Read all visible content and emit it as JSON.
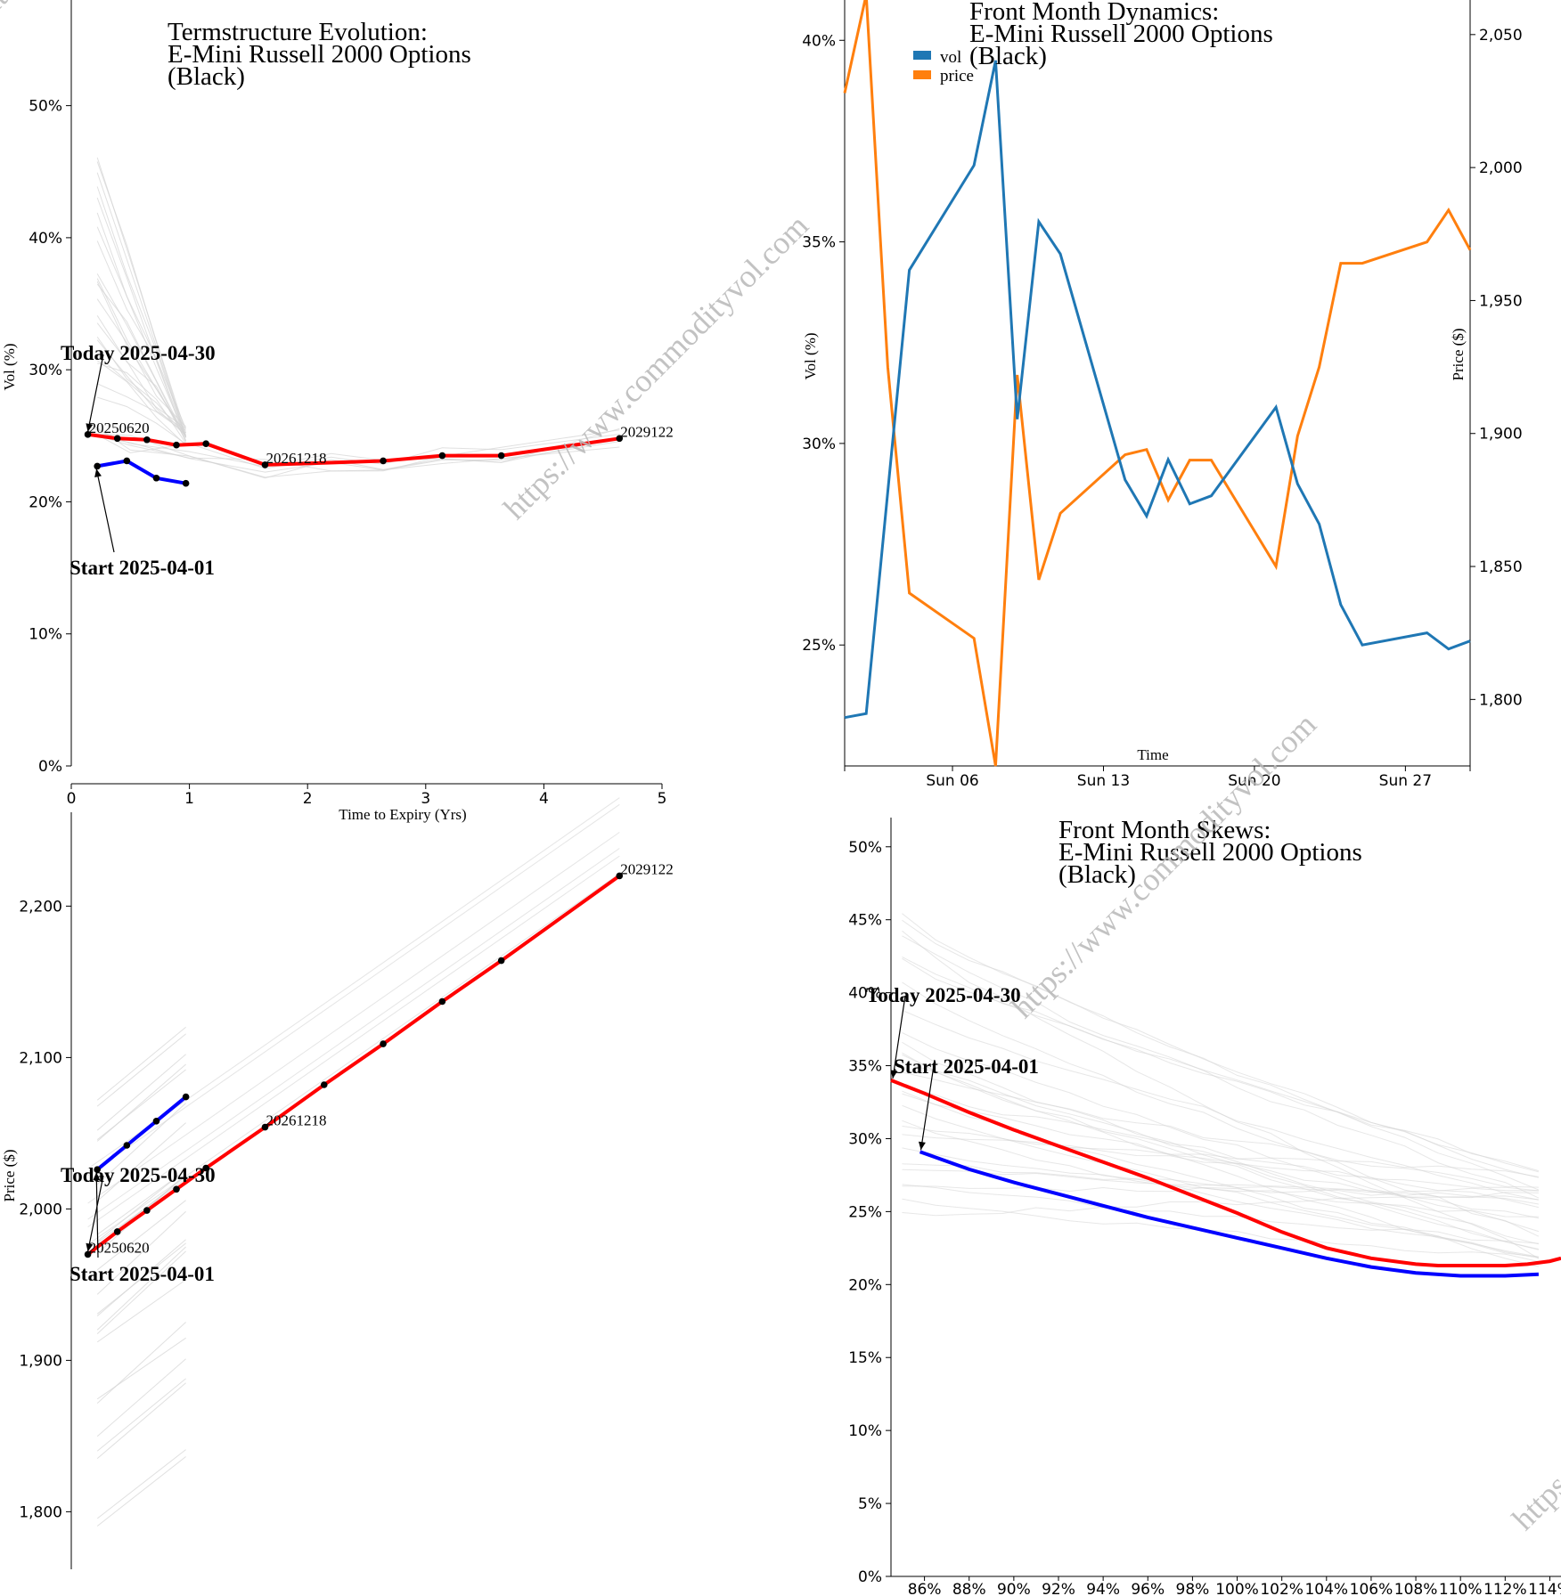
{
  "watermark": "https://www.commodityvol.com",
  "colors": {
    "today": "#ff0000",
    "start": "#0000ff",
    "history": "#d3d3d3",
    "vol": "#1f77b4",
    "price": "#ff7f0e",
    "dots": "#000000"
  },
  "chart_data": [
    {
      "id": "termstructure",
      "type": "line",
      "title": [
        "Termstructure Evolution:",
        "E-Mini Russell 2000 Options",
        "(Black)"
      ],
      "xlabel": "Time to Expiry (Yrs)",
      "ylabel": "Vol (%)",
      "xlim": [
        0,
        5
      ],
      "ylim": [
        0,
        58
      ],
      "xticks": [
        0,
        1,
        2,
        3,
        4,
        5
      ],
      "yticks": [
        0,
        10,
        20,
        30,
        40,
        50
      ],
      "annotations": {
        "today": "Today 2025-04-30",
        "start": "Start 2025-04-01"
      },
      "point_labels": [
        "20250620",
        "20261218",
        "2029122"
      ],
      "series": [
        {
          "name": "today",
          "x": [
            0.14,
            0.39,
            0.64,
            0.89,
            1.14,
            1.64,
            2.64,
            3.14,
            3.64,
            4.64
          ],
          "values": [
            25.1,
            24.8,
            24.7,
            24.3,
            24.4,
            22.8,
            23.1,
            23.5,
            23.5,
            24.8
          ]
        },
        {
          "name": "start",
          "x": [
            0.22,
            0.47,
            0.72,
            0.97
          ],
          "values": [
            22.7,
            23.1,
            21.8,
            21.4
          ]
        }
      ]
    },
    {
      "id": "forwards",
      "type": "line",
      "ylabel": "Price ($)",
      "xlim": [
        0,
        5
      ],
      "ylim": [
        1762,
        2262
      ],
      "yticks": [
        1800,
        1900,
        2000,
        2100,
        2200
      ],
      "annotations": {
        "today": "Today 2025-04-30",
        "start": "Start 2025-04-01"
      },
      "point_labels": [
        "20250620",
        "20261218",
        "2029122"
      ],
      "series": [
        {
          "name": "today",
          "x": [
            0.14,
            0.39,
            0.64,
            0.89,
            1.14,
            1.64,
            2.14,
            2.64,
            3.14,
            3.64,
            4.64
          ],
          "values": [
            1970,
            1985,
            1999,
            2013,
            2027,
            2054,
            2082,
            2109,
            2137,
            2164,
            2220
          ]
        },
        {
          "name": "start",
          "x": [
            0.22,
            0.47,
            0.72,
            0.97
          ],
          "values": [
            2026,
            2042,
            2058,
            2074
          ]
        }
      ]
    },
    {
      "id": "dynamics",
      "type": "line",
      "title": [
        "Front Month Dynamics:",
        "E-Mini Russell 2000 Options",
        "(Black)"
      ],
      "xlabel": "Time",
      "ylabel": "Vol (%)",
      "y2label": "Price ($)",
      "xlim": [
        0,
        29
      ],
      "ylim": [
        22,
        41
      ],
      "y2lim": [
        1775,
        2063
      ],
      "xticks": [
        {
          "x": 5,
          "label": "Sun 06"
        },
        {
          "x": 12,
          "label": "Sun 13"
        },
        {
          "x": 19,
          "label": "Sun 20"
        },
        {
          "x": 26,
          "label": "Sun 27"
        }
      ],
      "yticks": [
        25,
        30,
        35,
        40
      ],
      "y2ticks": [
        1800,
        1850,
        1900,
        1950,
        2000,
        2050
      ],
      "legend": [
        "vol",
        "price"
      ],
      "series": [
        {
          "name": "vol",
          "x": [
            0,
            1,
            2,
            3,
            6,
            7,
            8,
            9,
            10,
            13,
            14,
            15,
            16,
            17,
            20,
            21,
            22,
            23,
            24,
            27,
            28,
            29
          ],
          "values": [
            23.2,
            23.3,
            28.8,
            34.3,
            36.9,
            39.5,
            30.6,
            35.5,
            34.7,
            29.1,
            28.2,
            29.6,
            28.5,
            28.7,
            30.9,
            29.0,
            28.0,
            26.0,
            25.0,
            25.3,
            24.9,
            25.1
          ]
        },
        {
          "name": "price",
          "x": [
            0,
            1,
            2,
            3,
            6,
            7,
            8,
            9,
            10,
            13,
            14,
            15,
            16,
            17,
            20,
            21,
            22,
            23,
            24,
            27,
            28,
            29
          ],
          "values": [
            2028,
            2065,
            1925,
            1840,
            1823,
            1775,
            1922,
            1845,
            1870,
            1892,
            1894,
            1875,
            1890,
            1890,
            1850,
            1899,
            1925,
            1964,
            1964,
            1972,
            1984,
            1969
          ]
        }
      ]
    },
    {
      "id": "skews",
      "type": "line",
      "title": [
        "Front Month Skews:",
        "E-Mini Russell 2000 Options",
        "(Black)"
      ],
      "xlim": [
        84.5,
        114.5
      ],
      "ylim": [
        0,
        52
      ],
      "xticks": [
        86,
        88,
        90,
        92,
        94,
        96,
        98,
        100,
        102,
        104,
        106,
        108,
        110,
        112,
        114
      ],
      "yticks": [
        0,
        5,
        10,
        15,
        20,
        25,
        30,
        35,
        40,
        45,
        50
      ],
      "annotations": {
        "today": "Today 2025-04-30",
        "start": "Start 2025-04-01"
      },
      "series": [
        {
          "name": "today",
          "x": [
            84.5,
            86,
            88,
            90,
            92,
            94,
            96,
            98,
            100,
            102,
            104,
            106,
            108,
            109,
            110,
            111,
            112,
            113,
            114,
            114.5
          ],
          "values": [
            34.0,
            33.1,
            31.8,
            30.6,
            29.5,
            28.4,
            27.3,
            26.1,
            24.9,
            23.6,
            22.5,
            21.8,
            21.4,
            21.3,
            21.3,
            21.3,
            21.3,
            21.4,
            21.6,
            21.8
          ]
        },
        {
          "name": "start",
          "x": [
            85.8,
            88,
            90,
            92,
            94,
            96,
            98,
            100,
            102,
            104,
            106,
            108,
            110,
            112,
            113.5
          ],
          "values": [
            29.1,
            27.9,
            27.0,
            26.2,
            25.4,
            24.6,
            23.9,
            23.2,
            22.5,
            21.8,
            21.2,
            20.8,
            20.6,
            20.6,
            20.7
          ]
        }
      ]
    }
  ]
}
